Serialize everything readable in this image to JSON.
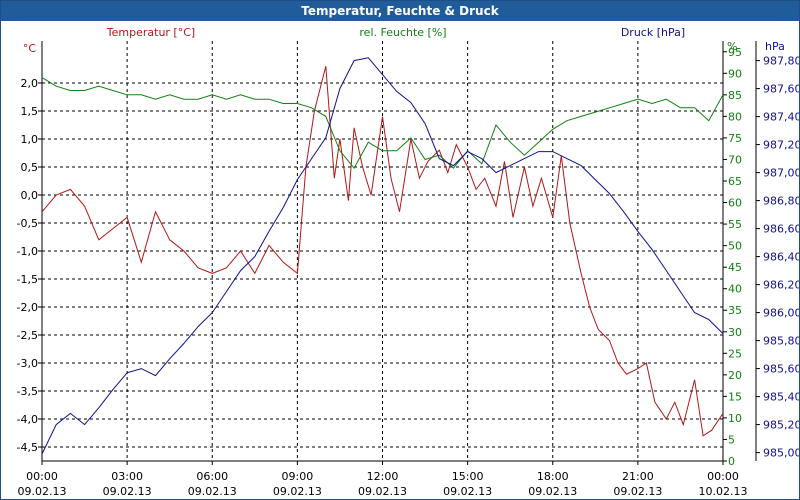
{
  "window": {
    "title": "Temperatur, Feuchte & Druck"
  },
  "colors": {
    "temperature": "#b01818",
    "humidity": "#128012",
    "pressure": "#101090",
    "grid": "#000000",
    "titlebar": "#1f5c99"
  },
  "chart_data": {
    "type": "line",
    "title": "Temperatur, Feuchte & Druck",
    "grid": true,
    "x_ticks": [
      {
        "time": "00:00",
        "date": "09.02.13"
      },
      {
        "time": "03:00",
        "date": "09.02.13"
      },
      {
        "time": "06:00",
        "date": "09.02.13"
      },
      {
        "time": "09:00",
        "date": "09.02.13"
      },
      {
        "time": "12:00",
        "date": "09.02.13"
      },
      {
        "time": "15:00",
        "date": "09.02.13"
      },
      {
        "time": "18:00",
        "date": "09.02.13"
      },
      {
        "time": "21:00",
        "date": "09.02.13"
      },
      {
        "time": "00:00",
        "date": "10.02.13"
      }
    ],
    "x_range_hours": [
      0,
      24
    ],
    "axes": {
      "temperature": {
        "label": "Temperatur [°C]",
        "unit": "°C",
        "range": [
          -4.75,
          2.75
        ],
        "ticks": [
          "2,0",
          "1,5",
          "1,0",
          "0,5",
          "0,0",
          "-0,5",
          "-1,0",
          "-1,5",
          "-2,0",
          "-2,5",
          "-3,0",
          "-3,5",
          "-4,0",
          "-4,5"
        ],
        "tick_values": [
          2.0,
          1.5,
          1.0,
          0.5,
          0.0,
          -0.5,
          -1.0,
          -1.5,
          -2.0,
          -2.5,
          -3.0,
          -3.5,
          -4.0,
          -4.5
        ]
      },
      "humidity": {
        "label": "rel. Feuchte [%]",
        "unit": "%",
        "range": [
          0,
          97.5
        ],
        "ticks": [
          "95",
          "90",
          "85",
          "80",
          "75",
          "70",
          "65",
          "60",
          "55",
          "50",
          "45",
          "40",
          "35",
          "30",
          "25",
          "20",
          "15",
          "10",
          "5",
          "0"
        ],
        "tick_values": [
          95,
          90,
          85,
          80,
          75,
          70,
          65,
          60,
          55,
          50,
          45,
          40,
          35,
          30,
          25,
          20,
          15,
          10,
          5,
          0
        ]
      },
      "pressure": {
        "label": "Druck [hPa]",
        "unit": "hPa",
        "range": [
          984.94,
          987.94
        ],
        "ticks": [
          "987,80",
          "987,60",
          "987,40",
          "987,20",
          "987,00",
          "986,80",
          "986,60",
          "986,40",
          "986,20",
          "986,00",
          "985,80",
          "985,60",
          "985,40",
          "985,20",
          "985,00"
        ],
        "tick_values": [
          987.8,
          987.6,
          987.4,
          987.2,
          987.0,
          986.8,
          986.6,
          986.4,
          986.2,
          986.0,
          985.8,
          985.6,
          985.4,
          985.2,
          985.0
        ]
      }
    },
    "series": [
      {
        "name": "Temperatur [°C]",
        "axis": "temperature",
        "color": "#b01818",
        "x": [
          0,
          0.5,
          1,
          1.5,
          2,
          2.5,
          3,
          3.5,
          4,
          4.5,
          5,
          5.5,
          6,
          6.5,
          7,
          7.5,
          8,
          8.5,
          9,
          9.3,
          9.6,
          10,
          10.3,
          10.5,
          10.8,
          11,
          11.3,
          11.6,
          12,
          12.3,
          12.6,
          13,
          13.3,
          13.6,
          14,
          14.3,
          14.6,
          15,
          15.3,
          15.6,
          16,
          16.3,
          16.6,
          17,
          17.3,
          17.6,
          18,
          18.3,
          18.6,
          19,
          19.3,
          19.6,
          20,
          20.3,
          20.6,
          21,
          21.3,
          21.6,
          22,
          22.3,
          22.6,
          23,
          23.3,
          23.6,
          24
        ],
        "values": [
          -0.3,
          0.0,
          0.1,
          -0.2,
          -0.8,
          -0.6,
          -0.4,
          -1.2,
          -0.3,
          -0.8,
          -1.0,
          -1.3,
          -1.4,
          -1.3,
          -1.0,
          -1.4,
          -0.9,
          -1.2,
          -1.4,
          0.5,
          1.5,
          2.3,
          0.3,
          1.0,
          -0.1,
          1.2,
          0.5,
          0.0,
          1.4,
          0.3,
          -0.3,
          1.0,
          0.3,
          0.6,
          0.8,
          0.4,
          0.9,
          0.5,
          0.1,
          0.3,
          -0.2,
          0.6,
          -0.4,
          0.5,
          -0.2,
          0.3,
          -0.4,
          0.7,
          -0.5,
          -1.4,
          -2.0,
          -2.4,
          -2.6,
          -3.0,
          -3.2,
          -3.1,
          -3.0,
          -3.7,
          -4.0,
          -3.7,
          -4.1,
          -3.3,
          -4.3,
          -4.2,
          -3.9
        ]
      },
      {
        "name": "rel. Feuchte [%]",
        "axis": "humidity",
        "color": "#128012",
        "x": [
          0,
          0.5,
          1,
          1.5,
          2,
          2.5,
          3,
          3.5,
          4,
          4.5,
          5,
          5.5,
          6,
          6.5,
          7,
          7.5,
          8,
          8.5,
          9,
          9.5,
          10,
          10.5,
          11,
          11.5,
          12,
          12.5,
          13,
          13.5,
          14,
          14.5,
          15,
          15.5,
          16,
          16.5,
          17,
          17.5,
          18,
          18.5,
          19,
          19.5,
          20,
          20.5,
          21,
          21.5,
          22,
          22.5,
          23,
          23.5,
          24
        ],
        "values": [
          89,
          87,
          86,
          86,
          87,
          86,
          85,
          85,
          84,
          85,
          84,
          84,
          85,
          84,
          85,
          84,
          84,
          83,
          83,
          82,
          80,
          72,
          68,
          74,
          72,
          72,
          75,
          70,
          71,
          68,
          72,
          69,
          78,
          74,
          71,
          74,
          77,
          79,
          80,
          81,
          82,
          83,
          84,
          83,
          84,
          82,
          82,
          79,
          85
        ]
      },
      {
        "name": "Druck [hPa]",
        "axis": "pressure",
        "color": "#101090",
        "x": [
          0,
          0.5,
          1,
          1.5,
          2,
          2.5,
          3,
          3.5,
          4,
          4.5,
          5,
          5.5,
          6,
          6.5,
          7,
          7.5,
          8,
          8.5,
          9,
          9.5,
          10,
          10.5,
          11,
          11.5,
          12,
          12.5,
          13,
          13.5,
          14,
          14.5,
          15,
          15.5,
          16,
          16.5,
          17,
          17.5,
          18,
          18.5,
          19,
          19.5,
          20,
          20.5,
          21,
          21.5,
          22,
          22.5,
          23,
          23.5,
          24
        ],
        "values": [
          984.99,
          985.2,
          985.28,
          985.2,
          985.32,
          985.45,
          985.57,
          985.6,
          985.55,
          985.67,
          985.78,
          985.9,
          986.0,
          986.15,
          986.3,
          986.4,
          986.58,
          986.75,
          986.95,
          987.1,
          987.25,
          987.6,
          987.8,
          987.82,
          987.7,
          987.58,
          987.5,
          987.35,
          987.1,
          987.05,
          987.15,
          987.1,
          987.0,
          987.05,
          987.1,
          987.15,
          987.15,
          987.1,
          987.05,
          986.95,
          986.85,
          986.72,
          986.58,
          986.45,
          986.3,
          986.15,
          986.0,
          985.95,
          985.85
        ]
      }
    ]
  }
}
